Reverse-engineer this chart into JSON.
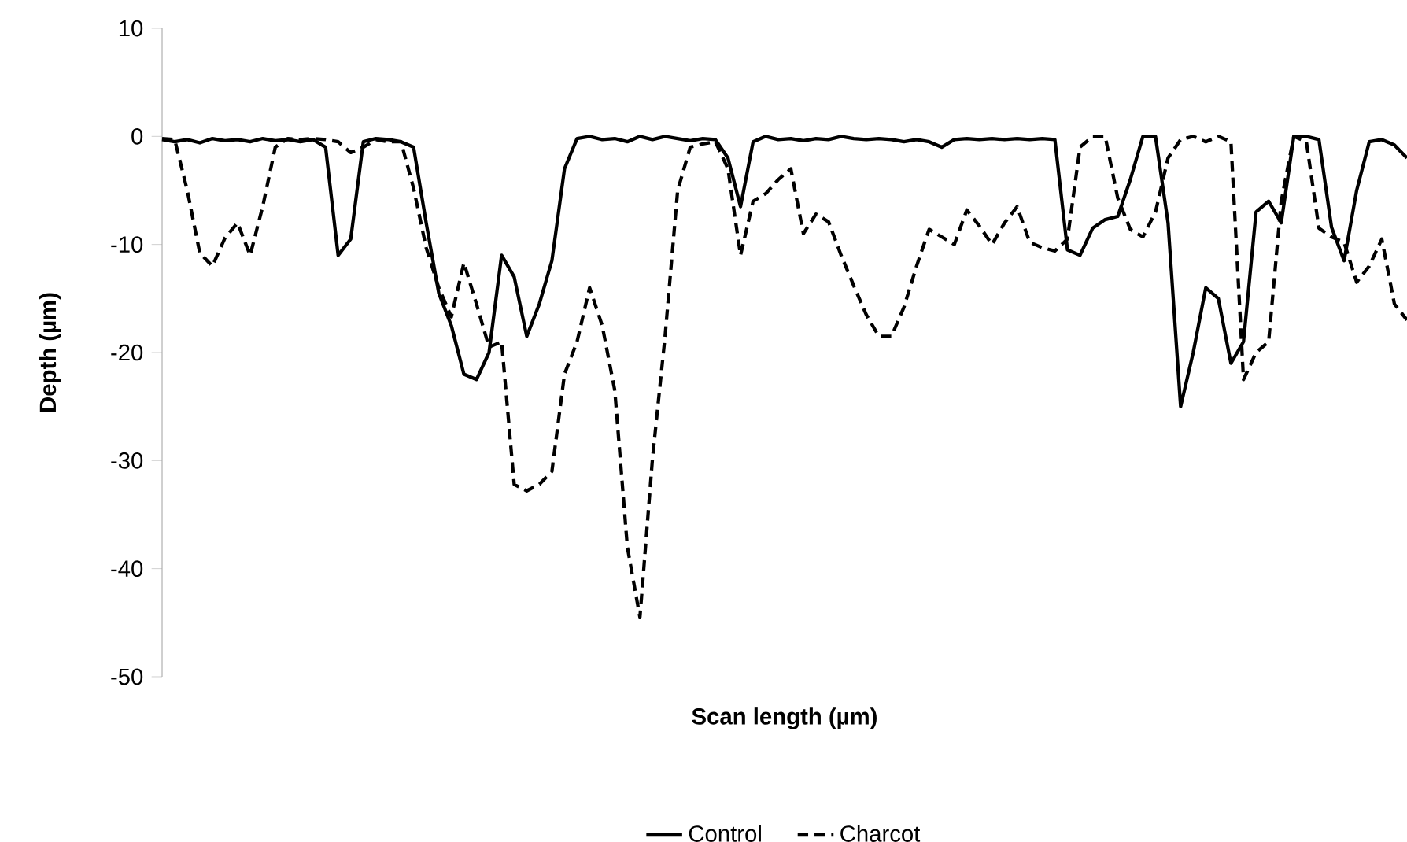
{
  "chart_data": {
    "type": "line",
    "xlabel": "Scan length (µm)",
    "ylabel": "Depth (µm)",
    "categories": [
      null,
      null,
      null,
      null,
      null,
      null,
      null,
      null,
      null,
      null,
      null,
      null,
      null,
      null,
      null,
      null,
      null,
      null,
      null,
      null,
      null,
      null,
      null,
      null,
      null,
      null,
      null,
      null,
      null,
      null,
      null,
      null,
      null,
      null,
      null,
      null,
      null,
      null,
      null,
      null,
      null,
      null,
      null,
      null,
      null,
      null,
      null,
      null,
      null,
      null,
      null,
      null,
      null,
      null,
      null,
      null,
      null,
      null,
      null,
      null,
      null,
      null,
      null,
      null,
      null,
      null,
      null,
      null,
      null,
      null,
      null,
      null,
      null,
      null,
      null,
      null,
      null,
      null,
      null,
      null,
      null,
      null,
      null,
      null,
      null,
      null,
      null,
      null,
      null,
      null,
      null,
      null,
      null,
      null,
      null,
      null,
      null,
      null,
      null,
      null
    ],
    "series": [
      {
        "name": "Control",
        "color": "#000000",
        "line_style": "solid",
        "values": [
          -0.3,
          -0.5,
          -0.3,
          -0.6,
          -0.2,
          -0.4,
          -0.3,
          -0.5,
          -0.2,
          -0.4,
          -0.3,
          -0.5,
          -0.3,
          -1,
          -11,
          -9.5,
          -0.5,
          -0.2,
          -0.3,
          -0.5,
          -1,
          -8,
          -14.5,
          -17.5,
          -22,
          -22.5,
          -20,
          -11,
          -13,
          -18.5,
          -15.5,
          -11.5,
          -3,
          -0.2,
          0,
          -0.3,
          -0.2,
          -0.5,
          0,
          -0.3,
          0,
          -0.2,
          -0.4,
          -0.2,
          -0.3,
          -2,
          -6.5,
          -0.5,
          0,
          -0.3,
          -0.2,
          -0.4,
          -0.2,
          -0.3,
          0,
          -0.2,
          -0.3,
          -0.2,
          -0.3,
          -0.5,
          -0.3,
          -0.5,
          -1,
          -0.3,
          -0.2,
          -0.3,
          -0.2,
          -0.3,
          -0.2,
          -0.3,
          -0.2,
          -0.3,
          -10.5,
          -11,
          -8.5,
          -7.7,
          -7.4,
          -4,
          0,
          0,
          -8,
          -25,
          -20,
          -14,
          -15,
          -21,
          -19,
          -7,
          -6,
          -8,
          0,
          0,
          -0.3,
          -8.4,
          -11.5,
          -5,
          -0.5,
          -0.3,
          -0.8,
          -2
        ]
      },
      {
        "name": "Charcot",
        "color": "#000000",
        "line_style": "dashed",
        "values": [
          -0.2,
          -0.3,
          -5,
          -10.8,
          -12,
          -9.4,
          -8,
          -11,
          -6.5,
          -1,
          -0.2,
          -0.3,
          -0.2,
          -0.3,
          -0.5,
          -1.5,
          -1,
          -0.3,
          -0.5,
          -0.5,
          -4.8,
          -10.3,
          -14,
          -16.7,
          -11.7,
          -15.5,
          -19.5,
          -19,
          -32.2,
          -32.8,
          -32.2,
          -31,
          -22,
          -19,
          -14,
          -17.5,
          -23.5,
          -38,
          -44.5,
          -29.8,
          -18.5,
          -5,
          -1,
          -0.7,
          -0.5,
          -3,
          -11,
          -6,
          -5.3,
          -4,
          -3,
          -9,
          -7.2,
          -7.9,
          -11,
          -13.8,
          -16.5,
          -18.5,
          -18.5,
          -15.8,
          -12,
          -8.6,
          -9.3,
          -10,
          -6.8,
          -8.3,
          -10,
          -8,
          -6.5,
          -9.8,
          -10.3,
          -10.6,
          -9.5,
          -1,
          0,
          0,
          -5.7,
          -8.6,
          -9.3,
          -7,
          -2,
          -0.3,
          0,
          -0.5,
          0,
          -0.5,
          -22.5,
          -20,
          -19,
          -6,
          0,
          -0.5,
          -8.5,
          -9.3,
          -9.8,
          -13.5,
          -12,
          -9.5,
          -15.5,
          -17
        ]
      }
    ],
    "ylim": [
      -50,
      10
    ],
    "yticks": [
      10,
      0,
      -10,
      -20,
      -30,
      -40,
      -50
    ],
    "tick_labels": "y",
    "legend": "bottom"
  }
}
